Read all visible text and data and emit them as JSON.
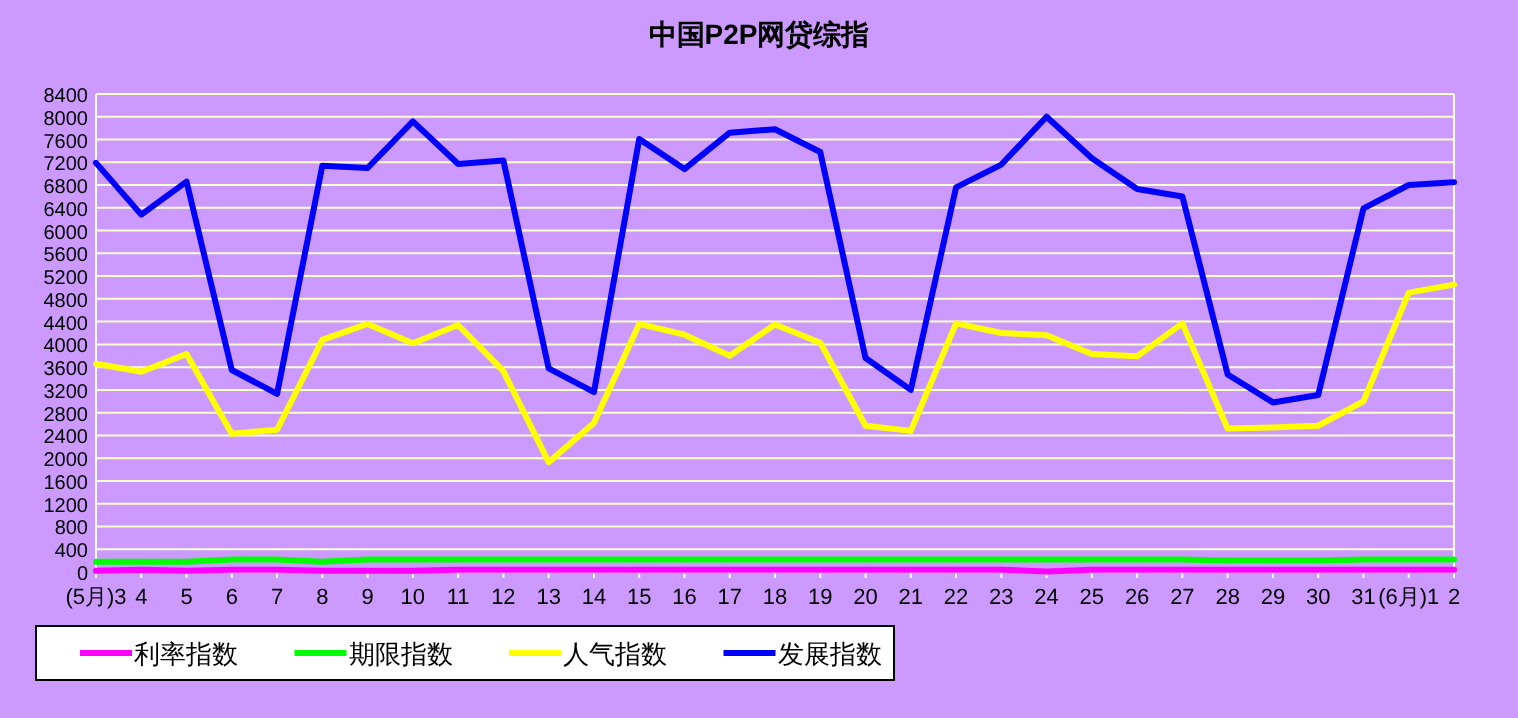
{
  "chart_data": {
    "type": "line",
    "title": "中国P2P网贷综指",
    "categories": [
      "(5月)3",
      "4",
      "5",
      "6",
      "7",
      "8",
      "9",
      "10",
      "11",
      "12",
      "13",
      "14",
      "15",
      "16",
      "17",
      "18",
      "19",
      "20",
      "21",
      "22",
      "23",
      "24",
      "25",
      "26",
      "27",
      "28",
      "29",
      "30",
      "31",
      "(6月)1",
      "2"
    ],
    "series": [
      {
        "name": "利率指数",
        "color": "#ff00ff",
        "values": [
          20,
          40,
          20,
          40,
          40,
          20,
          20,
          20,
          40,
          40,
          40,
          40,
          40,
          40,
          40,
          40,
          40,
          40,
          40,
          40,
          40,
          10,
          40,
          40,
          40,
          40,
          40,
          40,
          40,
          40,
          40
        ]
      },
      {
        "name": "期限指数",
        "color": "#00ff00",
        "values": [
          180,
          180,
          180,
          220,
          220,
          180,
          220,
          220,
          220,
          220,
          220,
          220,
          220,
          220,
          220,
          220,
          220,
          220,
          220,
          220,
          220,
          220,
          220,
          220,
          220,
          200,
          200,
          200,
          220,
          220,
          220
        ]
      },
      {
        "name": "人气指数",
        "color": "#ffff00",
        "values": [
          3660,
          3520,
          3830,
          2430,
          2500,
          4080,
          4360,
          4020,
          4340,
          3530,
          1930,
          2620,
          4360,
          4170,
          3800,
          4350,
          4030,
          2570,
          2480,
          4370,
          4200,
          4160,
          3830,
          3790,
          4370,
          2520,
          2540,
          2570,
          3000,
          4910,
          5050
        ]
      },
      {
        "name": "发展指数",
        "color": "#0000ff",
        "values": [
          7190,
          6280,
          6860,
          3550,
          3130,
          7140,
          7100,
          7920,
          7170,
          7230,
          3580,
          3160,
          7610,
          7080,
          7720,
          7780,
          7380,
          3760,
          3200,
          6760,
          7160,
          8000,
          7270,
          6730,
          6600,
          3470,
          2980,
          3110,
          6390,
          6800,
          6850
        ]
      }
    ],
    "ylim": [
      0,
      8400
    ],
    "yticks": [
      0,
      400,
      800,
      1200,
      1600,
      2000,
      2400,
      2800,
      3200,
      3600,
      4000,
      4400,
      4800,
      5200,
      5600,
      6000,
      6400,
      6800,
      7200,
      7600,
      8000,
      8400
    ],
    "grid": "y",
    "legend": "bottom",
    "marker": "none",
    "line_style": "solid"
  }
}
